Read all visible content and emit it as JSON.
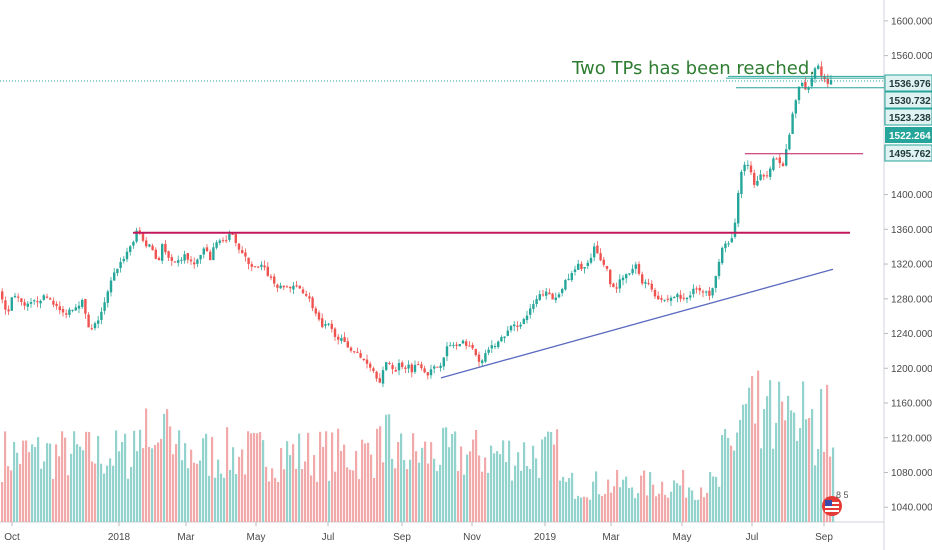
{
  "chart_data": {
    "type": "candlestick",
    "annotation": "Two TPs has been reached.",
    "x_tick_labels": [
      "Oct",
      "2018",
      "Mar",
      "May",
      "Jul",
      "Sep",
      "Nov",
      "2019",
      "Mar",
      "May",
      "Jul",
      "Sep"
    ],
    "y_tick_labels": [
      "1600.000",
      "1560.000",
      "1400.000",
      "1360.000",
      "1320.000",
      "1280.000",
      "1240.000",
      "1200.000",
      "1160.000",
      "1120.000",
      "1080.000",
      "1040.000"
    ],
    "y_ticks": [
      1600,
      1560,
      1400,
      1360,
      1320,
      1280,
      1240,
      1200,
      1160,
      1120,
      1080,
      1040
    ],
    "ylim": [
      1023,
      1624
    ],
    "price_labels": [
      {
        "value": 1536.976,
        "text": "1536.976",
        "style": "teal-outline"
      },
      {
        "value": 1530.732,
        "text": "1530.732",
        "style": "teal-outline"
      },
      {
        "value": 1523.238,
        "text": "1523.238",
        "style": "teal-outline"
      },
      {
        "value": 1522.264,
        "text": "1522.264",
        "style": "green-filled"
      },
      {
        "value": 1495.762,
        "text": "1495.762",
        "style": "teal-outline"
      }
    ],
    "horizontal_lines": [
      {
        "name": "resistance",
        "value": 1356,
        "color": "#c2185b"
      },
      {
        "name": "tp1",
        "value": 1447,
        "color": "#c2185b"
      },
      {
        "name": "tp2",
        "value": 1523,
        "color": "#26a69a"
      },
      {
        "name": "tp3",
        "value": 1536,
        "color": "#26a69a"
      },
      {
        "name": "tp4",
        "value": 1534,
        "color": "#26a69a"
      }
    ],
    "current_price_line": 1530.7,
    "trendline": {
      "start": 1189,
      "end": 1314
    },
    "price_path": [
      [
        0,
        1290
      ],
      [
        6,
        1272
      ],
      [
        10,
        1262
      ],
      [
        14,
        1282
      ],
      [
        18,
        1286
      ],
      [
        22,
        1276
      ],
      [
        26,
        1270
      ],
      [
        30,
        1272
      ],
      [
        36,
        1276
      ],
      [
        42,
        1280
      ],
      [
        48,
        1282
      ],
      [
        54,
        1278
      ],
      [
        60,
        1268
      ],
      [
        66,
        1262
      ],
      [
        72,
        1268
      ],
      [
        78,
        1272
      ],
      [
        84,
        1278
      ],
      [
        88,
        1258
      ],
      [
        92,
        1240
      ],
      [
        96,
        1248
      ],
      [
        100,
        1256
      ],
      [
        106,
        1272
      ],
      [
        112,
        1296
      ],
      [
        118,
        1314
      ],
      [
        124,
        1324
      ],
      [
        130,
        1336
      ],
      [
        136,
        1348
      ],
      [
        140,
        1360
      ],
      [
        144,
        1352
      ],
      [
        148,
        1338
      ],
      [
        152,
        1344
      ],
      [
        156,
        1332
      ],
      [
        160,
        1320
      ],
      [
        164,
        1344
      ],
      [
        168,
        1330
      ],
      [
        172,
        1324
      ],
      [
        176,
        1318
      ],
      [
        180,
        1322
      ],
      [
        186,
        1330
      ],
      [
        192,
        1324
      ],
      [
        196,
        1318
      ],
      [
        202,
        1330
      ],
      [
        208,
        1338
      ],
      [
        212,
        1324
      ],
      [
        216,
        1340
      ],
      [
        222,
        1350
      ],
      [
        228,
        1344
      ],
      [
        234,
        1358
      ],
      [
        240,
        1340
      ],
      [
        246,
        1328
      ],
      [
        252,
        1320
      ],
      [
        258,
        1314
      ],
      [
        264,
        1318
      ],
      [
        270,
        1308
      ],
      [
        276,
        1298
      ],
      [
        282,
        1292
      ],
      [
        288,
        1294
      ],
      [
        294,
        1292
      ],
      [
        300,
        1294
      ],
      [
        306,
        1288
      ],
      [
        312,
        1278
      ],
      [
        318,
        1262
      ],
      [
        324,
        1246
      ],
      [
        330,
        1250
      ],
      [
        336,
        1240
      ],
      [
        342,
        1234
      ],
      [
        348,
        1226
      ],
      [
        354,
        1222
      ],
      [
        358,
        1218
      ],
      [
        362,
        1212
      ],
      [
        366,
        1210
      ],
      [
        370,
        1206
      ],
      [
        374,
        1200
      ],
      [
        378,
        1192
      ],
      [
        382,
        1186
      ],
      [
        386,
        1200
      ],
      [
        390,
        1208
      ],
      [
        394,
        1202
      ],
      [
        398,
        1196
      ],
      [
        402,
        1208
      ],
      [
        406,
        1200
      ],
      [
        410,
        1204
      ],
      [
        414,
        1198
      ],
      [
        418,
        1204
      ],
      [
        422,
        1206
      ],
      [
        426,
        1198
      ],
      [
        430,
        1194
      ],
      [
        436,
        1200
      ],
      [
        442,
        1204
      ],
      [
        448,
        1222
      ],
      [
        454,
        1228
      ],
      [
        460,
        1224
      ],
      [
        466,
        1230
      ],
      [
        472,
        1226
      ],
      [
        478,
        1214
      ],
      [
        484,
        1206
      ],
      [
        490,
        1222
      ],
      [
        496,
        1226
      ],
      [
        502,
        1232
      ],
      [
        508,
        1240
      ],
      [
        514,
        1248
      ],
      [
        520,
        1250
      ],
      [
        526,
        1256
      ],
      [
        532,
        1266
      ],
      [
        538,
        1278
      ],
      [
        544,
        1286
      ],
      [
        550,
        1286
      ],
      [
        556,
        1278
      ],
      [
        562,
        1290
      ],
      [
        568,
        1300
      ],
      [
        574,
        1308
      ],
      [
        580,
        1318
      ],
      [
        586,
        1316
      ],
      [
        592,
        1322
      ],
      [
        596,
        1338
      ],
      [
        600,
        1330
      ],
      [
        604,
        1322
      ],
      [
        608,
        1318
      ],
      [
        612,
        1300
      ],
      [
        616,
        1290
      ],
      [
        622,
        1300
      ],
      [
        628,
        1306
      ],
      [
        634,
        1312
      ],
      [
        638,
        1318
      ],
      [
        642,
        1306
      ],
      [
        646,
        1296
      ],
      [
        650,
        1300
      ],
      [
        656,
        1286
      ],
      [
        662,
        1280
      ],
      [
        668,
        1278
      ],
      [
        674,
        1282
      ],
      [
        680,
        1284
      ],
      [
        686,
        1278
      ],
      [
        692,
        1284
      ],
      [
        696,
        1296
      ],
      [
        700,
        1290
      ],
      [
        706,
        1286
      ],
      [
        712,
        1286
      ],
      [
        716,
        1300
      ],
      [
        720,
        1320
      ],
      [
        724,
        1338
      ],
      [
        728,
        1344
      ],
      [
        732,
        1340
      ],
      [
        736,
        1360
      ],
      [
        740,
        1400
      ],
      [
        744,
        1428
      ],
      [
        748,
        1436
      ],
      [
        752,
        1432
      ],
      [
        756,
        1410
      ],
      [
        760,
        1414
      ],
      [
        764,
        1424
      ],
      [
        768,
        1422
      ],
      [
        772,
        1432
      ],
      [
        776,
        1444
      ],
      [
        780,
        1438
      ],
      [
        784,
        1430
      ],
      [
        788,
        1448
      ],
      [
        792,
        1472
      ],
      [
        796,
        1502
      ],
      [
        800,
        1520
      ],
      [
        804,
        1528
      ],
      [
        808,
        1520
      ],
      [
        812,
        1530
      ],
      [
        816,
        1544
      ],
      [
        820,
        1550
      ],
      [
        824,
        1536
      ],
      [
        828,
        1530
      ]
    ],
    "volume_note": "volume histogram at bottom (green/red bars)"
  }
}
